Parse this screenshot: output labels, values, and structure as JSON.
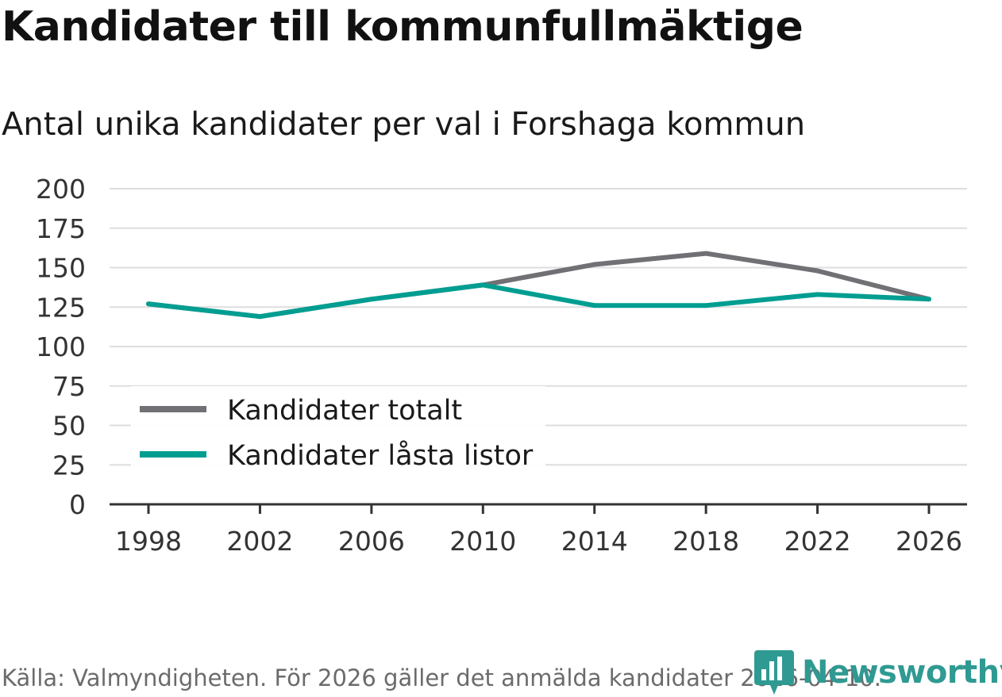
{
  "header": {
    "title": "Kandidater till kommunfullmäktige",
    "subtitle": "Antal unika kandidater per val i Forshaga kommun"
  },
  "footer": {
    "source": "Källa: Valmyndigheten. För 2026 gäller det anmälda kandidater 2026-04-10."
  },
  "brand": {
    "name": "Newsworthy",
    "color": "#2f9a92"
  },
  "colors": {
    "series_total": "#707075",
    "series_locked": "#009e91",
    "grid": "#dedede",
    "axis": "#333333",
    "tick_text": "#333333"
  },
  "chart_data": {
    "type": "line",
    "title": "Kandidater till kommunfullmäktige",
    "subtitle": "Antal unika kandidater per val i Forshaga kommun",
    "xlabel": "",
    "ylabel": "",
    "x": [
      "1998",
      "2002",
      "2006",
      "2010",
      "2014",
      "2018",
      "2022",
      "2026"
    ],
    "yticks": [
      0,
      25,
      50,
      75,
      100,
      125,
      150,
      175,
      200
    ],
    "ylim": [
      0,
      200
    ],
    "grid": true,
    "legend_position": "bottom-left",
    "series": [
      {
        "name": "Kandidater totalt",
        "color": "#707075",
        "values": [
          127,
          119,
          130,
          139,
          152,
          159,
          148,
          130
        ]
      },
      {
        "name": "Kandidater låsta listor",
        "color": "#009e91",
        "values": [
          127,
          119,
          130,
          139,
          126,
          126,
          133,
          130
        ]
      }
    ]
  }
}
